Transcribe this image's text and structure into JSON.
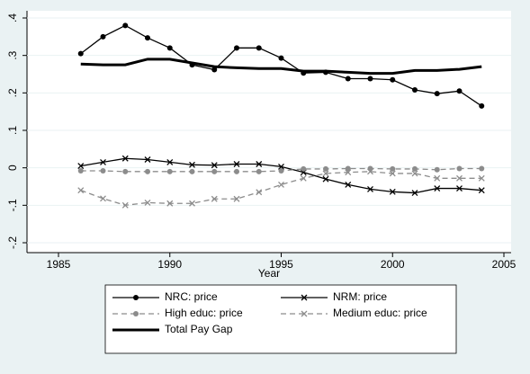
{
  "chart_data": {
    "type": "line",
    "x_label": "Year",
    "x": [
      1986,
      1987,
      1988,
      1989,
      1990,
      1991,
      1992,
      1993,
      1994,
      1995,
      1996,
      1997,
      1998,
      1999,
      2000,
      2001,
      2002,
      2003,
      2004
    ],
    "xlim": [
      1985,
      2005
    ],
    "xticks": [
      1985,
      1990,
      1995,
      2000,
      2005
    ],
    "ylim": [
      -0.2,
      0.4
    ],
    "yticks": [
      {
        "value": -0.2,
        "label": "-.2"
      },
      {
        "value": -0.1,
        "label": "-.1"
      },
      0,
      {
        "value": 0.1,
        "label": ".1"
      },
      {
        "value": 0.2,
        "label": ".2"
      },
      {
        "value": 0.3,
        "label": ".3"
      },
      {
        "value": 0.4,
        "label": ".4"
      }
    ],
    "grid": true,
    "series": [
      {
        "name": "NRC: price",
        "color": "#000000",
        "marker": "circle",
        "dash": false,
        "width": 1.3,
        "values": [
          0.305,
          0.35,
          0.38,
          0.347,
          0.32,
          0.275,
          0.262,
          0.32,
          0.32,
          0.293,
          0.253,
          0.255,
          0.238,
          0.238,
          0.235,
          0.208,
          0.198,
          0.205,
          0.165
        ]
      },
      {
        "name": "NRM: price",
        "color": "#000000",
        "marker": "x",
        "dash": false,
        "width": 1.3,
        "values": [
          0.005,
          0.015,
          0.025,
          0.022,
          0.015,
          0.008,
          0.007,
          0.01,
          0.01,
          0.003,
          -0.012,
          -0.03,
          -0.045,
          -0.057,
          -0.064,
          -0.067,
          -0.055,
          -0.055,
          -0.06
        ]
      },
      {
        "name": "High educ: price",
        "color": "#8c8c8c",
        "marker": "circle",
        "dash": true,
        "width": 1.3,
        "values": [
          -0.008,
          -0.008,
          -0.01,
          -0.01,
          -0.01,
          -0.01,
          -0.01,
          -0.01,
          -0.01,
          -0.008,
          -0.003,
          -0.003,
          -0.002,
          -0.002,
          -0.003,
          -0.003,
          -0.005,
          -0.002,
          -0.002
        ]
      },
      {
        "name": "Medium educ: price",
        "color": "#8c8c8c",
        "marker": "x",
        "dash": true,
        "width": 1.3,
        "values": [
          -0.06,
          -0.082,
          -0.1,
          -0.093,
          -0.095,
          -0.095,
          -0.083,
          -0.083,
          -0.065,
          -0.045,
          -0.028,
          -0.015,
          -0.012,
          -0.01,
          -0.015,
          -0.015,
          -0.028,
          -0.028,
          -0.028
        ]
      },
      {
        "name": "Total Pay Gap",
        "color": "#000000",
        "marker": "none",
        "dash": false,
        "width": 3,
        "values": [
          0.277,
          0.275,
          0.275,
          0.29,
          0.29,
          0.28,
          0.27,
          0.267,
          0.265,
          0.265,
          0.258,
          0.258,
          0.255,
          0.252,
          0.252,
          0.26,
          0.26,
          0.263,
          0.27
        ]
      }
    ]
  }
}
